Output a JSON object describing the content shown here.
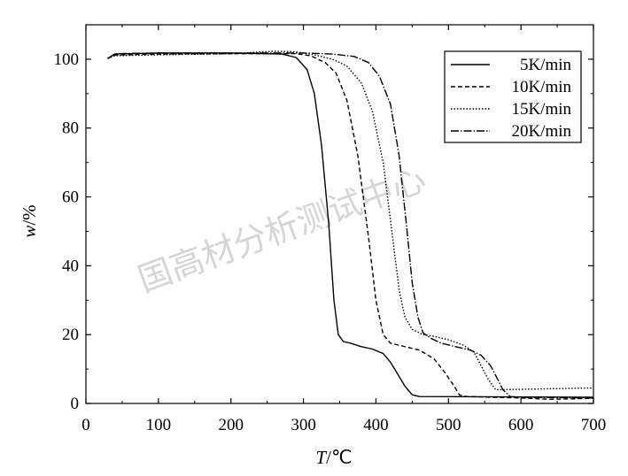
{
  "chart_data": {
    "type": "line",
    "xlabel_italic": "T",
    "xlabel_unit": "/℃",
    "ylabel_italic": "w",
    "ylabel_unit": "/%",
    "xlim": [
      0,
      700
    ],
    "ylim": [
      0,
      110
    ],
    "xticks": [
      0,
      100,
      200,
      300,
      400,
      500,
      600,
      700
    ],
    "yticks": [
      0,
      20,
      40,
      60,
      80,
      100
    ],
    "grid": false,
    "legend_position": "top-right",
    "watermark": "国高材分析测试中心",
    "series": [
      {
        "name": "5K/min",
        "dash": "solid",
        "points": [
          [
            30,
            100.2
          ],
          [
            40,
            101.5
          ],
          [
            100,
            101.8
          ],
          [
            200,
            101.8
          ],
          [
            270,
            101.5
          ],
          [
            290,
            100.5
          ],
          [
            305,
            97
          ],
          [
            315,
            90
          ],
          [
            325,
            75
          ],
          [
            335,
            52
          ],
          [
            342,
            30
          ],
          [
            348,
            20
          ],
          [
            355,
            18
          ],
          [
            365,
            17.5
          ],
          [
            380,
            16.5
          ],
          [
            395,
            15.8
          ],
          [
            410,
            14.5
          ],
          [
            420,
            12
          ],
          [
            430,
            8.5
          ],
          [
            440,
            5
          ],
          [
            450,
            2.5
          ],
          [
            460,
            2
          ],
          [
            700,
            1.8
          ]
        ]
      },
      {
        "name": "10K/min",
        "dash": "dashed",
        "points": [
          [
            30,
            100.2
          ],
          [
            40,
            101.2
          ],
          [
            100,
            101.5
          ],
          [
            200,
            101.6
          ],
          [
            290,
            101.6
          ],
          [
            310,
            101
          ],
          [
            330,
            99
          ],
          [
            345,
            96
          ],
          [
            360,
            88
          ],
          [
            375,
            72
          ],
          [
            390,
            48
          ],
          [
            400,
            30
          ],
          [
            410,
            20
          ],
          [
            420,
            17.5
          ],
          [
            440,
            16.5
          ],
          [
            460,
            15.5
          ],
          [
            480,
            13
          ],
          [
            495,
            9
          ],
          [
            508,
            5
          ],
          [
            515,
            2.5
          ],
          [
            525,
            2
          ],
          [
            560,
            1.8
          ],
          [
            600,
            1.6
          ],
          [
            640,
            1.2
          ],
          [
            700,
            1.5
          ]
        ]
      },
      {
        "name": "15K/min",
        "dash": "dotted",
        "points": [
          [
            30,
            100.2
          ],
          [
            40,
            101
          ],
          [
            100,
            101.3
          ],
          [
            200,
            101.6
          ],
          [
            260,
            102.3
          ],
          [
            285,
            102.2
          ],
          [
            310,
            101.5
          ],
          [
            340,
            100
          ],
          [
            360,
            98
          ],
          [
            380,
            93
          ],
          [
            395,
            85
          ],
          [
            410,
            70
          ],
          [
            422,
            50
          ],
          [
            432,
            33
          ],
          [
            440,
            25
          ],
          [
            450,
            21.5
          ],
          [
            465,
            20
          ],
          [
            480,
            19.5
          ],
          [
            500,
            18.5
          ],
          [
            520,
            17
          ],
          [
            535,
            15
          ],
          [
            545,
            11
          ],
          [
            555,
            7
          ],
          [
            565,
            4
          ],
          [
            575,
            4
          ],
          [
            700,
            4.5
          ]
        ]
      },
      {
        "name": "20K/min",
        "dash": "dashdot",
        "points": [
          [
            30,
            100.2
          ],
          [
            40,
            101.6
          ],
          [
            100,
            101.8
          ],
          [
            200,
            101.8
          ],
          [
            300,
            101.8
          ],
          [
            340,
            101.5
          ],
          [
            370,
            100.8
          ],
          [
            390,
            99
          ],
          [
            405,
            95
          ],
          [
            420,
            87
          ],
          [
            432,
            72
          ],
          [
            442,
            52
          ],
          [
            450,
            35
          ],
          [
            458,
            25
          ],
          [
            465,
            20.5
          ],
          [
            475,
            19
          ],
          [
            490,
            17.5
          ],
          [
            510,
            16.5
          ],
          [
            530,
            15.5
          ],
          [
            545,
            14
          ],
          [
            558,
            11
          ],
          [
            568,
            7
          ],
          [
            575,
            4
          ],
          [
            585,
            2
          ],
          [
            600,
            1.8
          ],
          [
            700,
            1.6
          ]
        ]
      }
    ]
  }
}
